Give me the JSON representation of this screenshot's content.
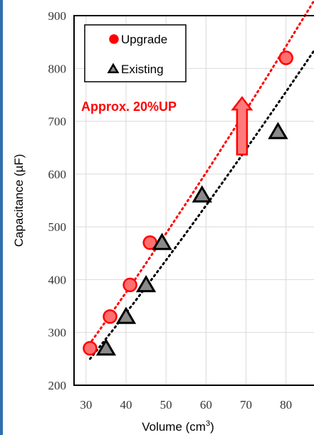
{
  "chart_data": {
    "type": "scatter",
    "xlabel": "Volume (cm",
    "xlabel_superscript": "3",
    "xlabel_suffix": ")",
    "ylabel": "Capacitance (µF)",
    "xlim": [
      27,
      87
    ],
    "ylim": [
      200,
      900
    ],
    "xticks": [
      30,
      40,
      50,
      60,
      70,
      80
    ],
    "yticks": [
      200,
      300,
      400,
      500,
      600,
      700,
      800,
      900
    ],
    "grid": true,
    "legend": "top-left",
    "series": [
      {
        "name": "Upgrade",
        "marker": "circle",
        "color": "#ff0000",
        "fill": "#ff6f6f",
        "trendline": "dotted",
        "x": [
          31,
          36,
          41,
          46,
          80
        ],
        "y": [
          270,
          330,
          390,
          470,
          820
        ]
      },
      {
        "name": "Existing",
        "marker": "triangle",
        "color": "#000000",
        "fill": "#8a8a8a",
        "trendline": "dotted",
        "x": [
          35,
          40,
          45,
          49,
          59,
          78
        ],
        "y": [
          270,
          330,
          390,
          470,
          560,
          680
        ]
      }
    ],
    "annotation": {
      "text": "Approx. 20%UP",
      "color": "#ff0000",
      "arrow_from": [
        69,
        637
      ],
      "arrow_to": [
        69,
        745
      ]
    }
  }
}
